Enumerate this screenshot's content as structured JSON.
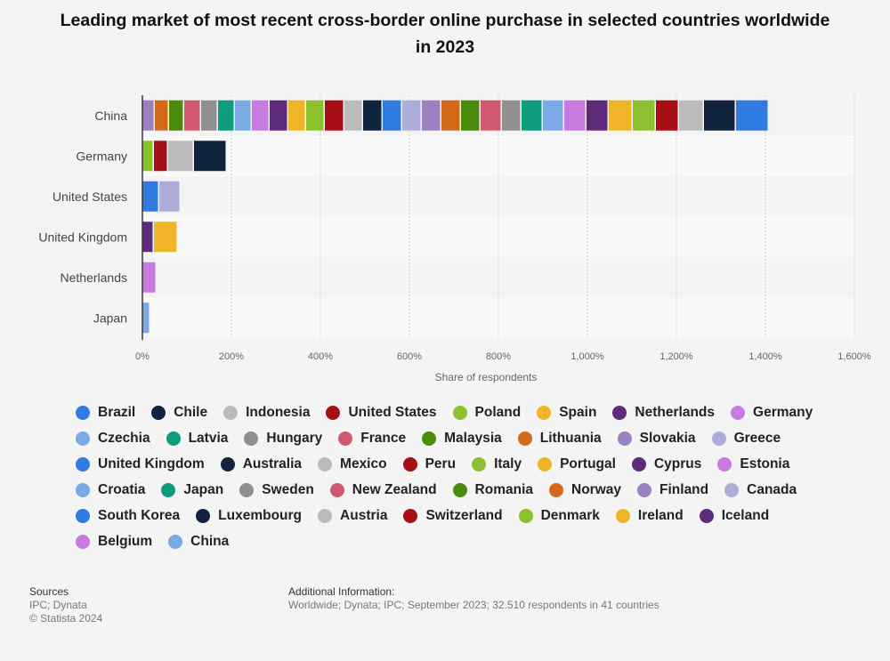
{
  "chart_data": {
    "type": "bar",
    "orientation": "horizontal",
    "stacked": true,
    "title": "Leading market of most recent cross-border online purchase in selected countries worldwide in 2023",
    "categories": [
      "China",
      "Germany",
      "United States",
      "United Kingdom",
      "Netherlands",
      "Japan"
    ],
    "xlabel": "Share of respondents",
    "xlim": [
      0,
      1600
    ],
    "xticks": [
      "0%",
      "200%",
      "400%",
      "600%",
      "800%",
      "1,000%",
      "1,200%",
      "1,400%",
      "1,600%"
    ],
    "grid": true,
    "legend_position": "bottom",
    "series": [
      {
        "name": "Brazil",
        "color": "#2f7bdf",
        "values": [
          0,
          0,
          0,
          0,
          0,
          0
        ]
      },
      {
        "name": "Chile",
        "color": "#10243e",
        "values": [
          0,
          0,
          0,
          0,
          0,
          0
        ]
      },
      {
        "name": "Indonesia",
        "color": "#bbbbbb",
        "values": [
          0,
          0,
          0,
          0,
          0,
          0
        ]
      },
      {
        "name": "United States",
        "color": "#a50f15",
        "values": [
          0,
          0,
          0,
          0,
          0,
          0
        ]
      },
      {
        "name": "Poland",
        "color": "#8cc02e",
        "values": [
          0,
          0,
          0,
          0,
          0,
          0
        ]
      },
      {
        "name": "Spain",
        "color": "#f0b429",
        "values": [
          0,
          0,
          0,
          0,
          0,
          0
        ]
      },
      {
        "name": "Netherlands",
        "color": "#5e2b7a",
        "values": [
          0,
          0,
          0,
          0,
          0,
          0
        ]
      },
      {
        "name": "Germany",
        "color": "#c77ae0",
        "values": [
          0,
          0,
          0,
          0,
          0,
          0
        ]
      },
      {
        "name": "Czechia",
        "color": "#7aa9e6",
        "values": [
          0,
          0,
          0,
          0,
          0,
          0
        ]
      },
      {
        "name": "Latvia",
        "color": "#0e9c7c",
        "values": [
          0,
          0,
          0,
          0,
          0,
          0
        ]
      },
      {
        "name": "Hungary",
        "color": "#8f8f8f",
        "values": [
          0,
          0,
          0,
          0,
          0,
          0
        ]
      },
      {
        "name": "France",
        "color": "#d1596f",
        "values": [
          0,
          0,
          0,
          0,
          0,
          0
        ]
      },
      {
        "name": "Malaysia",
        "color": "#4a8b0b",
        "values": [
          0,
          0,
          0,
          0,
          0,
          0
        ]
      },
      {
        "name": "Lithuania",
        "color": "#d2691b",
        "values": [
          0,
          0,
          0,
          0,
          0,
          0
        ]
      },
      {
        "name": "Slovakia",
        "color": "#9b80c2",
        "values": [
          28,
          0,
          0,
          0,
          0,
          0
        ]
      },
      {
        "name": "Greece",
        "color": "#aeadda",
        "values": [
          0,
          0,
          0,
          0,
          0,
          0
        ]
      },
      {
        "name": "United Kingdom",
        "color": "#2f7bdf",
        "values": [
          0,
          0,
          0,
          0,
          0,
          0
        ]
      },
      {
        "name": "Australia",
        "color": "#10243e",
        "values": [
          0,
          0,
          0,
          0,
          0,
          0
        ]
      },
      {
        "name": "Mexico",
        "color": "#bbbbbb",
        "values": [
          0,
          0,
          0,
          0,
          0,
          0
        ]
      },
      {
        "name": "Peru",
        "color": "#a50f15",
        "values": [
          0,
          0,
          0,
          0,
          0,
          0
        ]
      },
      {
        "name": "Italy",
        "color": "#8cc02e",
        "values": [
          0,
          0,
          0,
          0,
          0,
          0
        ]
      },
      {
        "name": "Portugal",
        "color": "#f0b429",
        "values": [
          0,
          0,
          0,
          0,
          0,
          0
        ]
      },
      {
        "name": "Cyprus",
        "color": "#5e2b7a",
        "values": [
          0,
          0,
          0,
          0,
          0,
          0
        ]
      },
      {
        "name": "Estonia",
        "color": "#c77ae0",
        "values": [
          0,
          0,
          0,
          0,
          0,
          0
        ]
      },
      {
        "name": "Croatia",
        "color": "#7aa9e6",
        "values": [
          0,
          0,
          0,
          0,
          0,
          0
        ]
      },
      {
        "name": "Japan",
        "color": "#0e9c7c",
        "values": [
          0,
          0,
          0,
          0,
          0,
          0
        ]
      },
      {
        "name": "Sweden",
        "color": "#8f8f8f",
        "values": [
          0,
          0,
          0,
          0,
          0,
          0
        ]
      },
      {
        "name": "New Zealand",
        "color": "#d1596f",
        "values": [
          0,
          0,
          0,
          0,
          0,
          0
        ]
      },
      {
        "name": "Romania",
        "color": "#4a8b0b",
        "values": [
          0,
          0,
          0,
          0,
          0,
          0
        ]
      },
      {
        "name": "Norway",
        "color": "#d2691b",
        "values": [
          32,
          0,
          0,
          0,
          0,
          0
        ]
      },
      {
        "name": "Finland",
        "color": "#9b80c2",
        "values": [
          0,
          0,
          0,
          0,
          0,
          0
        ]
      },
      {
        "name": "Canada",
        "color": "#aeadda",
        "values": [
          0,
          0,
          0,
          0,
          0,
          0
        ]
      },
      {
        "name": "South Korea",
        "color": "#2f7bdf",
        "values": [
          0,
          0,
          0,
          0,
          0,
          0
        ]
      },
      {
        "name": "Luxembourg",
        "color": "#10243e",
        "values": [
          0,
          0,
          0,
          0,
          0,
          0
        ]
      },
      {
        "name": "Austria",
        "color": "#bbbbbb",
        "values": [
          0,
          0,
          0,
          0,
          0,
          0
        ]
      },
      {
        "name": "Switzerland",
        "color": "#a50f15",
        "values": [
          0,
          0,
          0,
          0,
          0,
          0
        ]
      },
      {
        "name": "Denmark",
        "color": "#8cc02e",
        "values": [
          0,
          0,
          0,
          0,
          0,
          0
        ]
      },
      {
        "name": "Ireland",
        "color": "#f0b429",
        "values": [
          0,
          0,
          0,
          0,
          0,
          0
        ]
      },
      {
        "name": "Iceland",
        "color": "#5e2b7a",
        "values": [
          0,
          0,
          0,
          0,
          0,
          0
        ]
      },
      {
        "name": "Belgium",
        "color": "#c77ae0",
        "values": [
          0,
          0,
          0,
          0,
          0,
          0
        ]
      },
      {
        "name": "China",
        "color": "#7aa9e6",
        "values": [
          0,
          0,
          0,
          0,
          0,
          0
        ]
      }
    ],
    "segments": [
      {
        "category": "China",
        "parts": [
          {
            "color": "#9b80c2",
            "value": 28
          },
          {
            "color": "#d2691b",
            "value": 32
          },
          {
            "color": "#4a8b0b",
            "value": 34
          },
          {
            "color": "#d1596f",
            "value": 38
          },
          {
            "color": "#8f8f8f",
            "value": 38
          },
          {
            "color": "#0e9c7c",
            "value": 38
          },
          {
            "color": "#7aa9e6",
            "value": 38
          },
          {
            "color": "#c77ae0",
            "value": 40
          },
          {
            "color": "#5e2b7a",
            "value": 42
          },
          {
            "color": "#f0b429",
            "value": 40
          },
          {
            "color": "#8cc02e",
            "value": 42
          },
          {
            "color": "#a50f15",
            "value": 44
          },
          {
            "color": "#bbbbbb",
            "value": 42
          },
          {
            "color": "#10243e",
            "value": 44
          },
          {
            "color": "#2f7bdf",
            "value": 44
          },
          {
            "color": "#aeadda",
            "value": 44
          },
          {
            "color": "#9b80c2",
            "value": 44
          },
          {
            "color": "#d2691b",
            "value": 44
          },
          {
            "color": "#4a8b0b",
            "value": 44
          },
          {
            "color": "#d1596f",
            "value": 48
          },
          {
            "color": "#8f8f8f",
            "value": 44
          },
          {
            "color": "#0e9c7c",
            "value": 48
          },
          {
            "color": "#7aa9e6",
            "value": 48
          },
          {
            "color": "#c77ae0",
            "value": 50
          },
          {
            "color": "#5e2b7a",
            "value": 50
          },
          {
            "color": "#f0b429",
            "value": 54
          },
          {
            "color": "#8cc02e",
            "value": 52
          },
          {
            "color": "#a50f15",
            "value": 52
          },
          {
            "color": "#bbbbbb",
            "value": 56
          },
          {
            "color": "#10243e",
            "value": 72
          },
          {
            "color": "#2f7bdf",
            "value": 74
          }
        ]
      },
      {
        "category": "Germany",
        "parts": [
          {
            "color": "#8cc02e",
            "value": 26
          },
          {
            "color": "#a50f15",
            "value": 32
          },
          {
            "color": "#bbbbbb",
            "value": 58
          },
          {
            "color": "#10243e",
            "value": 74
          }
        ]
      },
      {
        "category": "United States",
        "parts": [
          {
            "color": "#2f7bdf",
            "value": 38
          },
          {
            "color": "#aeadda",
            "value": 48
          }
        ]
      },
      {
        "category": "United Kingdom",
        "parts": [
          {
            "color": "#5e2b7a",
            "value": 26
          },
          {
            "color": "#f0b429",
            "value": 54
          }
        ]
      },
      {
        "category": "Netherlands",
        "parts": [
          {
            "color": "#c77ae0",
            "value": 32
          }
        ]
      },
      {
        "category": "Japan",
        "parts": [
          {
            "color": "#7aa9e6",
            "value": 18
          }
        ]
      }
    ]
  },
  "footer": {
    "sources_heading": "Sources",
    "sources_line1": "IPC; Dynata",
    "sources_line2": "© Statista 2024",
    "info_heading": "Additional Information:",
    "info_text": "Worldwide; Dynata; IPC; September 2023; 32.510 respondents in 41 countries"
  }
}
